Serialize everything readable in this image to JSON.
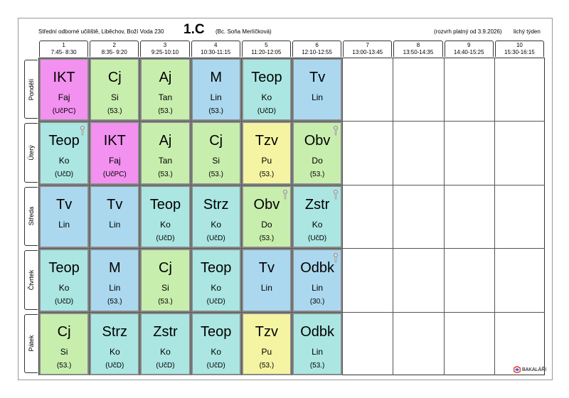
{
  "header": {
    "school": "Střední odborné učiliště, Liběchov, Boží Voda 230",
    "class": "1.C",
    "teacher": "(Bc. Soňa Merlíčková)",
    "validity": "(rozvrh platný od 3.9.2026)",
    "week": "lichý týden"
  },
  "periods": [
    {
      "number": "1",
      "time": "7:45- 8:30"
    },
    {
      "number": "2",
      "time": "8:35- 9:20"
    },
    {
      "number": "3",
      "time": "9:25-10:10"
    },
    {
      "number": "4",
      "time": "10:30-11:15"
    },
    {
      "number": "5",
      "time": "11:20-12:05"
    },
    {
      "number": "6",
      "time": "12:10-12:55"
    },
    {
      "number": "7",
      "time": "13:00-13:45"
    },
    {
      "number": "8",
      "time": "13:50-14:35"
    },
    {
      "number": "9",
      "time": "14:40-15:25"
    },
    {
      "number": "10",
      "time": "15:30-16:15"
    }
  ],
  "days": [
    {
      "name": "Pondělí",
      "lessons": [
        {
          "subject": "IKT",
          "teacher": "Faj",
          "room": "(UčPC)",
          "color": "#f291ef"
        },
        {
          "subject": "Cj",
          "teacher": "Si",
          "room": "(53.)",
          "color": "#c8eeae"
        },
        {
          "subject": "Aj",
          "teacher": "Tan",
          "room": "(53.)",
          "color": "#c8eeae"
        },
        {
          "subject": "M",
          "teacher": "Lin",
          "room": "(53.)",
          "color": "#abd8ee"
        },
        {
          "subject": "Teop",
          "teacher": "Ko",
          "room": "(UčD)",
          "color": "#abe6e2"
        },
        {
          "subject": "Tv",
          "teacher": "Lin",
          "color": "#abd8ee"
        }
      ]
    },
    {
      "name": "Úterý",
      "lessons": [
        {
          "subject": "Teop",
          "teacher": "Ko",
          "room": "(UčD)",
          "color": "#abe6e2"
        },
        {
          "subject": "IKT",
          "teacher": "Faj",
          "room": "(UčPC)",
          "color": "#f291ef"
        },
        {
          "subject": "Aj",
          "teacher": "Tan",
          "room": "(53.)",
          "color": "#c8eeae"
        },
        {
          "subject": "Cj",
          "teacher": "Si",
          "room": "(53.)",
          "color": "#c8eeae"
        },
        {
          "subject": "Tzv",
          "teacher": "Pu",
          "room": "(53.)",
          "color": "#f5f4a2"
        },
        {
          "subject": "Obv",
          "teacher": "Do",
          "room": "(53.)",
          "color": "#c8eeae"
        }
      ]
    },
    {
      "name": "Středa",
      "lessons": [
        {
          "subject": "Tv",
          "teacher": "Lin",
          "color": "#abd8ee"
        },
        {
          "subject": "Tv",
          "teacher": "Lin",
          "color": "#abd8ee"
        },
        {
          "subject": "Teop",
          "teacher": "Ko",
          "room": "(UčD)",
          "color": "#abe6e2"
        },
        {
          "subject": "Strz",
          "teacher": "Ko",
          "room": "(UčD)",
          "color": "#abe6e2"
        },
        {
          "subject": "Obv",
          "teacher": "Do",
          "room": "(53.)",
          "color": "#c8eeae"
        },
        {
          "subject": "Zstr",
          "teacher": "Ko",
          "room": "(UčD)",
          "color": "#abe6e2"
        }
      ]
    },
    {
      "name": "Čtvrtek",
      "lessons": [
        {
          "subject": "Teop",
          "teacher": "Ko",
          "room": "(UčD)",
          "color": "#abe6e2"
        },
        {
          "subject": "M",
          "teacher": "Lin",
          "room": "(53.)",
          "color": "#abd8ee"
        },
        {
          "subject": "Cj",
          "teacher": "Si",
          "room": "(53.)",
          "color": "#c8eeae"
        },
        {
          "subject": "Teop",
          "teacher": "Ko",
          "room": "(UčD)",
          "color": "#abe6e2"
        },
        {
          "subject": "Tv",
          "teacher": "Lin",
          "color": "#abd8ee"
        },
        {
          "subject": "Odbk",
          "teacher": "Lin",
          "room": "(30.)",
          "color": "#abd8ee"
        }
      ]
    },
    {
      "name": "Pátek",
      "lessons": [
        {
          "subject": "Cj",
          "teacher": "Si",
          "room": "(53.)",
          "color": "#c8eeae"
        },
        {
          "subject": "Strz",
          "teacher": "Ko",
          "room": "(UčD)",
          "color": "#abe6e2"
        },
        {
          "subject": "Zstr",
          "teacher": "Ko",
          "room": "(UčD)",
          "color": "#abe6e2"
        },
        {
          "subject": "Teop",
          "teacher": "Ko",
          "room": "(UčD)",
          "color": "#abe6e2"
        },
        {
          "subject": "Tzv",
          "teacher": "Pu",
          "room": "(53.)",
          "color": "#f5f4a2"
        },
        {
          "subject": "Odbk",
          "teacher": "Lin",
          "room": "(53.)",
          "color": "#abe6e2"
        }
      ]
    }
  ],
  "logo": "BAKALÁŘI"
}
